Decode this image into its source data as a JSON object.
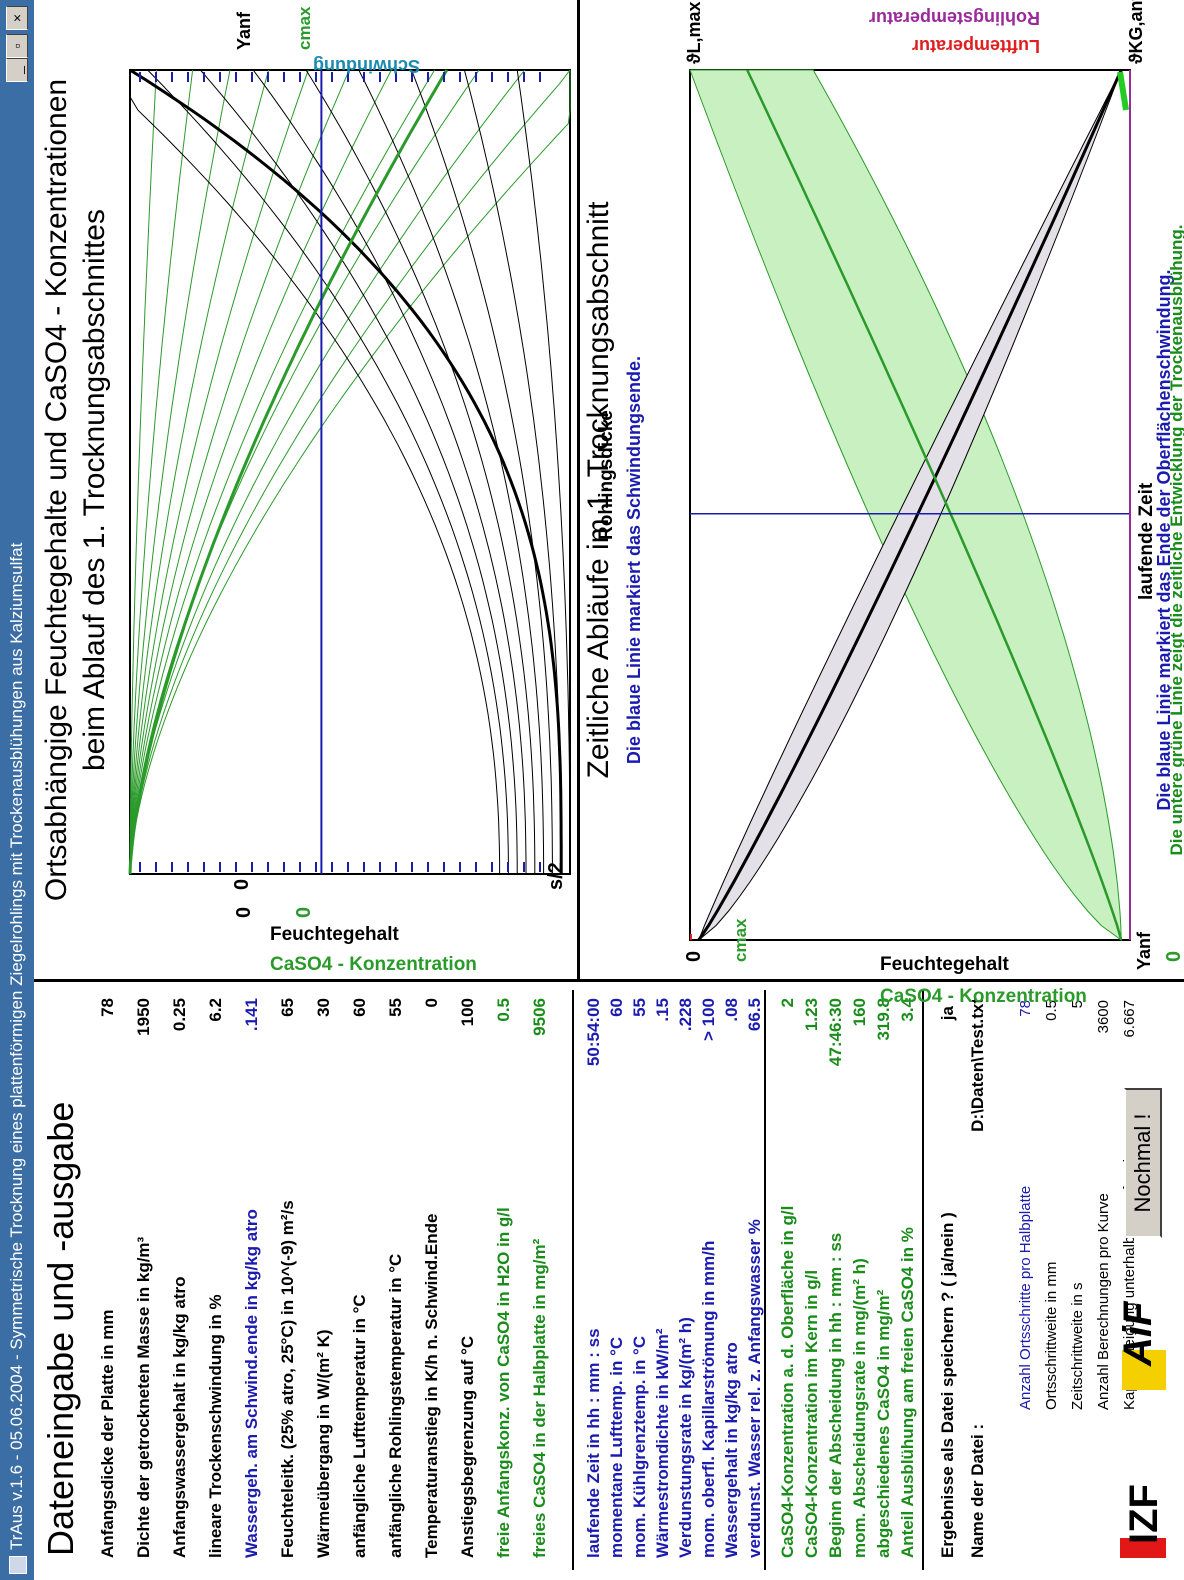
{
  "window": {
    "title": "TrAus v.1.6  -  05.06.2004  -  Symmetrische Trocknung eines plattenförmigen Ziegelrohlings mit Trockenausblühungen aus Kalziumsulfat",
    "minimize": "_",
    "maximize": "▫",
    "close": "×"
  },
  "left": {
    "title": "Dateneingabe und -ausgabe",
    "inputs": [
      {
        "label": "Anfangsdicke der Platte in mm",
        "value": "78",
        "color": "black"
      },
      {
        "label": "Dichte der getrockneten Masse in kg/m³",
        "value": "1950",
        "color": "black"
      },
      {
        "label": "Anfangswassergehalt in kg/kg atro",
        "value": "0.25",
        "color": "black"
      },
      {
        "label": "lineare Trockenschwindung in %",
        "value": "6.2",
        "color": "black"
      },
      {
        "label": "Wassergeh. am Schwind.ende in kg/kg atro",
        "value": ".141",
        "color": "blue"
      },
      {
        "label": "Feuchteleitk. (25% atro, 25°C) in 10^(-9) m²/s",
        "value": "65",
        "color": "black"
      },
      {
        "label": "Wärmeübergang in W/(m² K)",
        "value": "30",
        "color": "black"
      },
      {
        "label": "anfängliche Lufttemperatur in °C",
        "value": "60",
        "color": "black"
      },
      {
        "label": "anfängliche Rohlingstemperatur in °C",
        "value": "55",
        "color": "black"
      },
      {
        "label": "Temperaturanstieg in K/h n. Schwind.Ende",
        "value": "0",
        "color": "black"
      },
      {
        "label": "Anstiegsbegrenzung auf °C",
        "value": "100",
        "color": "black"
      },
      {
        "label": "freie Anfangskonz. von CaSO4 in H2O in g/l",
        "value": "0.5",
        "color": "green"
      },
      {
        "label": "freies CaSO4  in der Halbplatte in mg/m²",
        "value": "9506",
        "color": "green"
      }
    ],
    "outputs1": [
      {
        "label": "laufende Zeit in hh : mm : ss",
        "value": "50:54:00"
      },
      {
        "label": "momentane Lufttemp. in °C",
        "value": "60"
      },
      {
        "label": "mom. Kühlgrenztemp. in °C",
        "value": "55"
      },
      {
        "label": "Wärmestromdichte in kW/m²",
        "value": ".15"
      },
      {
        "label": "Verdunstungsrate in kg/(m² h)",
        "value": ".228"
      },
      {
        "label": "mom. oberfl. Kapillarströmung in mm/h",
        "value": "> 100"
      },
      {
        "label": "Wassergehalt in kg/kg atro",
        "value": ".08"
      },
      {
        "label": "verdunst. Wasser rel. z. Anfangswasser %",
        "value": "66.5"
      }
    ],
    "outputs2": [
      {
        "label": "CaSO4-Konzentration a. d. Oberfläche in g/l",
        "value": "2"
      },
      {
        "label": "CaSO4-Konzentration im Kern in g/l",
        "value": "1.23"
      },
      {
        "label": "Beginn der Abscheidung in hh : mm : ss",
        "value": "47:46:30"
      },
      {
        "label": "mom. Abscheidungsrate in mg/(m² h)",
        "value": "160"
      },
      {
        "label": "abgeschiedenes CaSO4 in mg/m²",
        "value": "319.8"
      },
      {
        "label": "Anteil Ausblühung am freien CaSO4 in %",
        "value": "3.4"
      }
    ],
    "save_label": "Ergebnisse als Datei speichern ?  ( ja/nein )",
    "save_value": "ja",
    "file_label": "Name der Datei :",
    "file_value": "D:\\Daten\\Test.txt",
    "params": [
      {
        "label": "Anzahl Ortsschritte pro Halbplatte",
        "value": "78"
      },
      {
        "label": "Ortsschrittweite in mm",
        "value": "0.5"
      },
      {
        "label": "Zeitschrittweite in s",
        "value": "5"
      },
      {
        "label": "Anzahl Berechnungen pro Kurve",
        "value": "3600"
      },
      {
        "label": "Kappa-Steigung unterhalb Grenzfeuchte",
        "value": "6.667"
      }
    ],
    "button_label": "Nochmal !",
    "logo1": "IZF",
    "logo2": "AiF"
  },
  "chart_top": {
    "title1": "Ortsabhängige Feuchtegehalte und CaSO4 - Konzentrationen",
    "title2": "beim Ablauf des 1. Trocknungsabschnittes",
    "ylabel_moist": "Feuchtegehalt",
    "ylabel_conc": "CaSO4 - Konzentration",
    "y_top_moist": "Yanf",
    "y_top_conc": "cmax",
    "y_zero": "0",
    "x_zero": "0",
    "x_end": "s/2",
    "xlabel": "Rohlingsdicke",
    "right_label": "Schwindung",
    "note": "Die blaue Linie markiert das Schwindungsende."
  },
  "chart_bottom": {
    "title": "Zeitliche Abläufe im 1. Trocknungsabschnitt",
    "ylabel_moist": "Feuchtegehalt",
    "ylabel_conc": "CaSO4 - Konzentration",
    "y_top_zero": "0",
    "y_bottom_moist": "Yanf",
    "y_top_conc": "cmax",
    "y_bottom_zero": "0",
    "xlabel": "laufende Zeit",
    "theta_top": "ϑL,max",
    "theta_bottom": "ϑKG,anf",
    "legend_air": "Lufttemperatur",
    "legend_blank": "Rohlingstemperatur",
    "note1": "Die blaue Linie markiert das Ende der Oberflächenschwindung.",
    "note2": "Die untere grüne Linie zeigt die zeitliche Entwicklung der Trockenausblühung."
  },
  "colors": {
    "title_bar": "#3a6ea5",
    "blue_text": "#1b1bb0",
    "green_text": "#1a8c1a",
    "curve_green": "#2a9a2a",
    "band_green": "#c8f0c0",
    "band_grey": "#e4e0e8",
    "air_red": "#e02020",
    "blank_purple": "#9a2a9a",
    "schwindung_cyan": "#1a8ab0"
  }
}
